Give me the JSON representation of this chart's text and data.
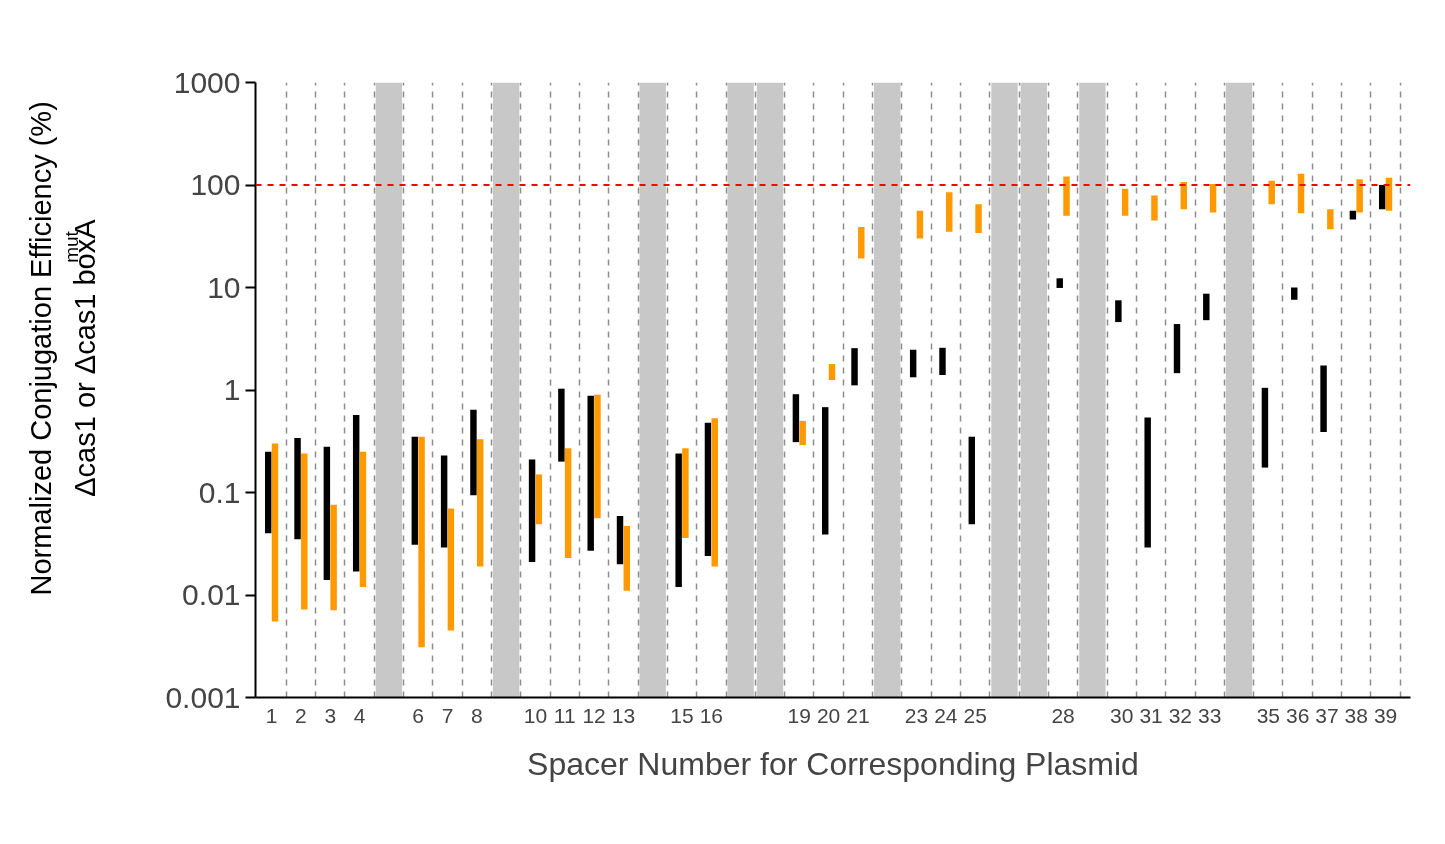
{
  "chart_data": {
    "type": "bar",
    "xlabel": "Spacer Number for Corresponding Plasmid",
    "ylabel": "Normalized Conjugation Efficiency (%)\nΔcas1 or Δcas1 boxA$^{mut}$",
    "log": "y",
    "grid": "x",
    "x": [
      1,
      2,
      3,
      4,
      5,
      6,
      7,
      8,
      9,
      10,
      11,
      12,
      13,
      14,
      15,
      16,
      17,
      18,
      19,
      20,
      21,
      22,
      23,
      24,
      25,
      26,
      27,
      28,
      29,
      30,
      31,
      32,
      33,
      34,
      35,
      36,
      37,
      38,
      39
    ],
    "xlim": [
      0.45,
      39.85
    ],
    "xticks": [
      1,
      2,
      3,
      4,
      6,
      7,
      8,
      10,
      11,
      12,
      13,
      15,
      16,
      19,
      20,
      21,
      23,
      24,
      25,
      28,
      30,
      31,
      32,
      33,
      35,
      36,
      37,
      38,
      39,
      {
        "value": 1.5,
        "label": null
      },
      {
        "value": 2.5,
        "label": null
      },
      {
        "value": 3.5,
        "label": null
      },
      {
        "value": 4.5,
        "label": null
      },
      {
        "value": 5.5,
        "label": null
      },
      {
        "value": 6.5,
        "label": null
      },
      {
        "value": 7.5,
        "label": null
      },
      {
        "value": 8.5,
        "label": null
      },
      {
        "value": 9.5,
        "label": null
      },
      {
        "value": 10.5,
        "label": null
      },
      {
        "value": 11.5,
        "label": null
      },
      {
        "value": 12.5,
        "label": null
      },
      {
        "value": 13.5,
        "label": null
      },
      {
        "value": 14.5,
        "label": null
      },
      {
        "value": 15.5,
        "label": null
      },
      {
        "value": 16.5,
        "label": null
      },
      {
        "value": 17.5,
        "label": null
      },
      {
        "value": 18.5,
        "label": null
      },
      {
        "value": 19.5,
        "label": null
      },
      {
        "value": 20.5,
        "label": null
      },
      {
        "value": 21.5,
        "label": null
      },
      {
        "value": 22.5,
        "label": null
      },
      {
        "value": 23.5,
        "label": null
      },
      {
        "value": 24.5,
        "label": null
      },
      {
        "value": 25.5,
        "label": null
      },
      {
        "value": 26.5,
        "label": null
      },
      {
        "value": 27.5,
        "label": null
      },
      {
        "value": 28.5,
        "label": null
      },
      {
        "value": 29.5,
        "label": null
      },
      {
        "value": 30.5,
        "label": null
      },
      {
        "value": 31.5,
        "label": null
      },
      {
        "value": 32.5,
        "label": null
      },
      {
        "value": 33.5,
        "label": null
      },
      {
        "value": 34.5,
        "label": null
      },
      {
        "value": 35.5,
        "label": null
      },
      {
        "value": 36.5,
        "label": null
      },
      {
        "value": 37.5,
        "label": null
      },
      {
        "value": 38.5,
        "label": null
      },
      {
        "value": 39.5,
        "label": null
      }
    ],
    "ylim": [
      0.001,
      1000
    ],
    "yticks": [
      0.001,
      0.01,
      0.1,
      1,
      10,
      100,
      1000
    ],
    "series": [
      {
        "color": "#000000",
        "base": [
          0.04,
          0.035,
          0.014,
          0.017,
          null,
          0.031,
          0.029,
          0.094,
          null,
          0.021,
          0.2,
          0.027,
          0.02,
          null,
          0.012,
          0.024,
          null,
          null,
          0.31,
          0.039,
          1.11,
          null,
          1.33,
          1.4,
          0.049,
          null,
          null,
          9.9,
          null,
          4.6,
          0.029,
          1.46,
          4.8,
          null,
          0.175,
          7.6,
          0.39,
          46,
          58
        ],
        "values": [
          0.21,
          0.305,
          0.266,
          0.553,
          null,
          0.319,
          0.201,
          0.546,
          null,
          0.189,
          0.83,
          0.853,
          0.039,
          null,
          0.228,
          0.456,
          null,
          null,
          0.6,
          0.641,
          1.45,
          null,
          1.14,
          1.18,
          0.301,
          null,
          null,
          2.4,
          null,
          2.9,
          0.511,
          2.94,
          3.9,
          null,
          0.875,
          2.4,
          1.34,
          10,
          42
        ]
      },
      {
        "color": "#ff9900",
        "base": [
          0.0055,
          0.0072,
          0.0071,
          0.012,
          null,
          0.0031,
          0.0045,
          0.019,
          null,
          0.049,
          0.023,
          0.056,
          0.011,
          null,
          0.036,
          0.019,
          null,
          null,
          0.29,
          1.25,
          19.2,
          null,
          30,
          35,
          34,
          null,
          null,
          50,
          null,
          50,
          45,
          58,
          54,
          null,
          65,
          53,
          37,
          54,
          56
        ],
        "values": [
          0.2945,
          0.2328,
          0.0689,
          0.238,
          null,
          0.3469,
          0.0655,
          0.311,
          null,
          0.101,
          0.247,
          0.844,
          0.036,
          null,
          0.234,
          0.511,
          null,
          null,
          0.21,
          0.54,
          19.8,
          null,
          26,
          50,
          31,
          null,
          null,
          71,
          null,
          42,
          34,
          49,
          48,
          null,
          45,
          76,
          21,
          60,
          62
        ]
      }
    ],
    "ref_lines": [
      {
        "axis": "y",
        "value": 100,
        "color": "#ff0000",
        "line_style": "dashed"
      }
    ],
    "bands": [
      {
        "axis": "x",
        "from": 4.55,
        "to": 5.45,
        "color": "#c8c8c8"
      },
      {
        "axis": "x",
        "from": 8.55,
        "to": 9.45,
        "color": "#c8c8c8"
      },
      {
        "axis": "x",
        "from": 13.55,
        "to": 14.45,
        "color": "#c8c8c8"
      },
      {
        "axis": "x",
        "from": 16.55,
        "to": 17.45,
        "color": "#c8c8c8"
      },
      {
        "axis": "x",
        "from": 17.55,
        "to": 18.45,
        "color": "#c8c8c8"
      },
      {
        "axis": "x",
        "from": 21.55,
        "to": 22.45,
        "color": "#c8c8c8"
      },
      {
        "axis": "x",
        "from": 25.55,
        "to": 26.45,
        "color": "#c8c8c8"
      },
      {
        "axis": "x",
        "from": 26.55,
        "to": 27.45,
        "color": "#c8c8c8"
      },
      {
        "axis": "x",
        "from": 28.55,
        "to": 29.45,
        "color": "#c8c8c8"
      },
      {
        "axis": "x",
        "from": 33.55,
        "to": 34.45,
        "color": "#c8c8c8"
      }
    ]
  }
}
